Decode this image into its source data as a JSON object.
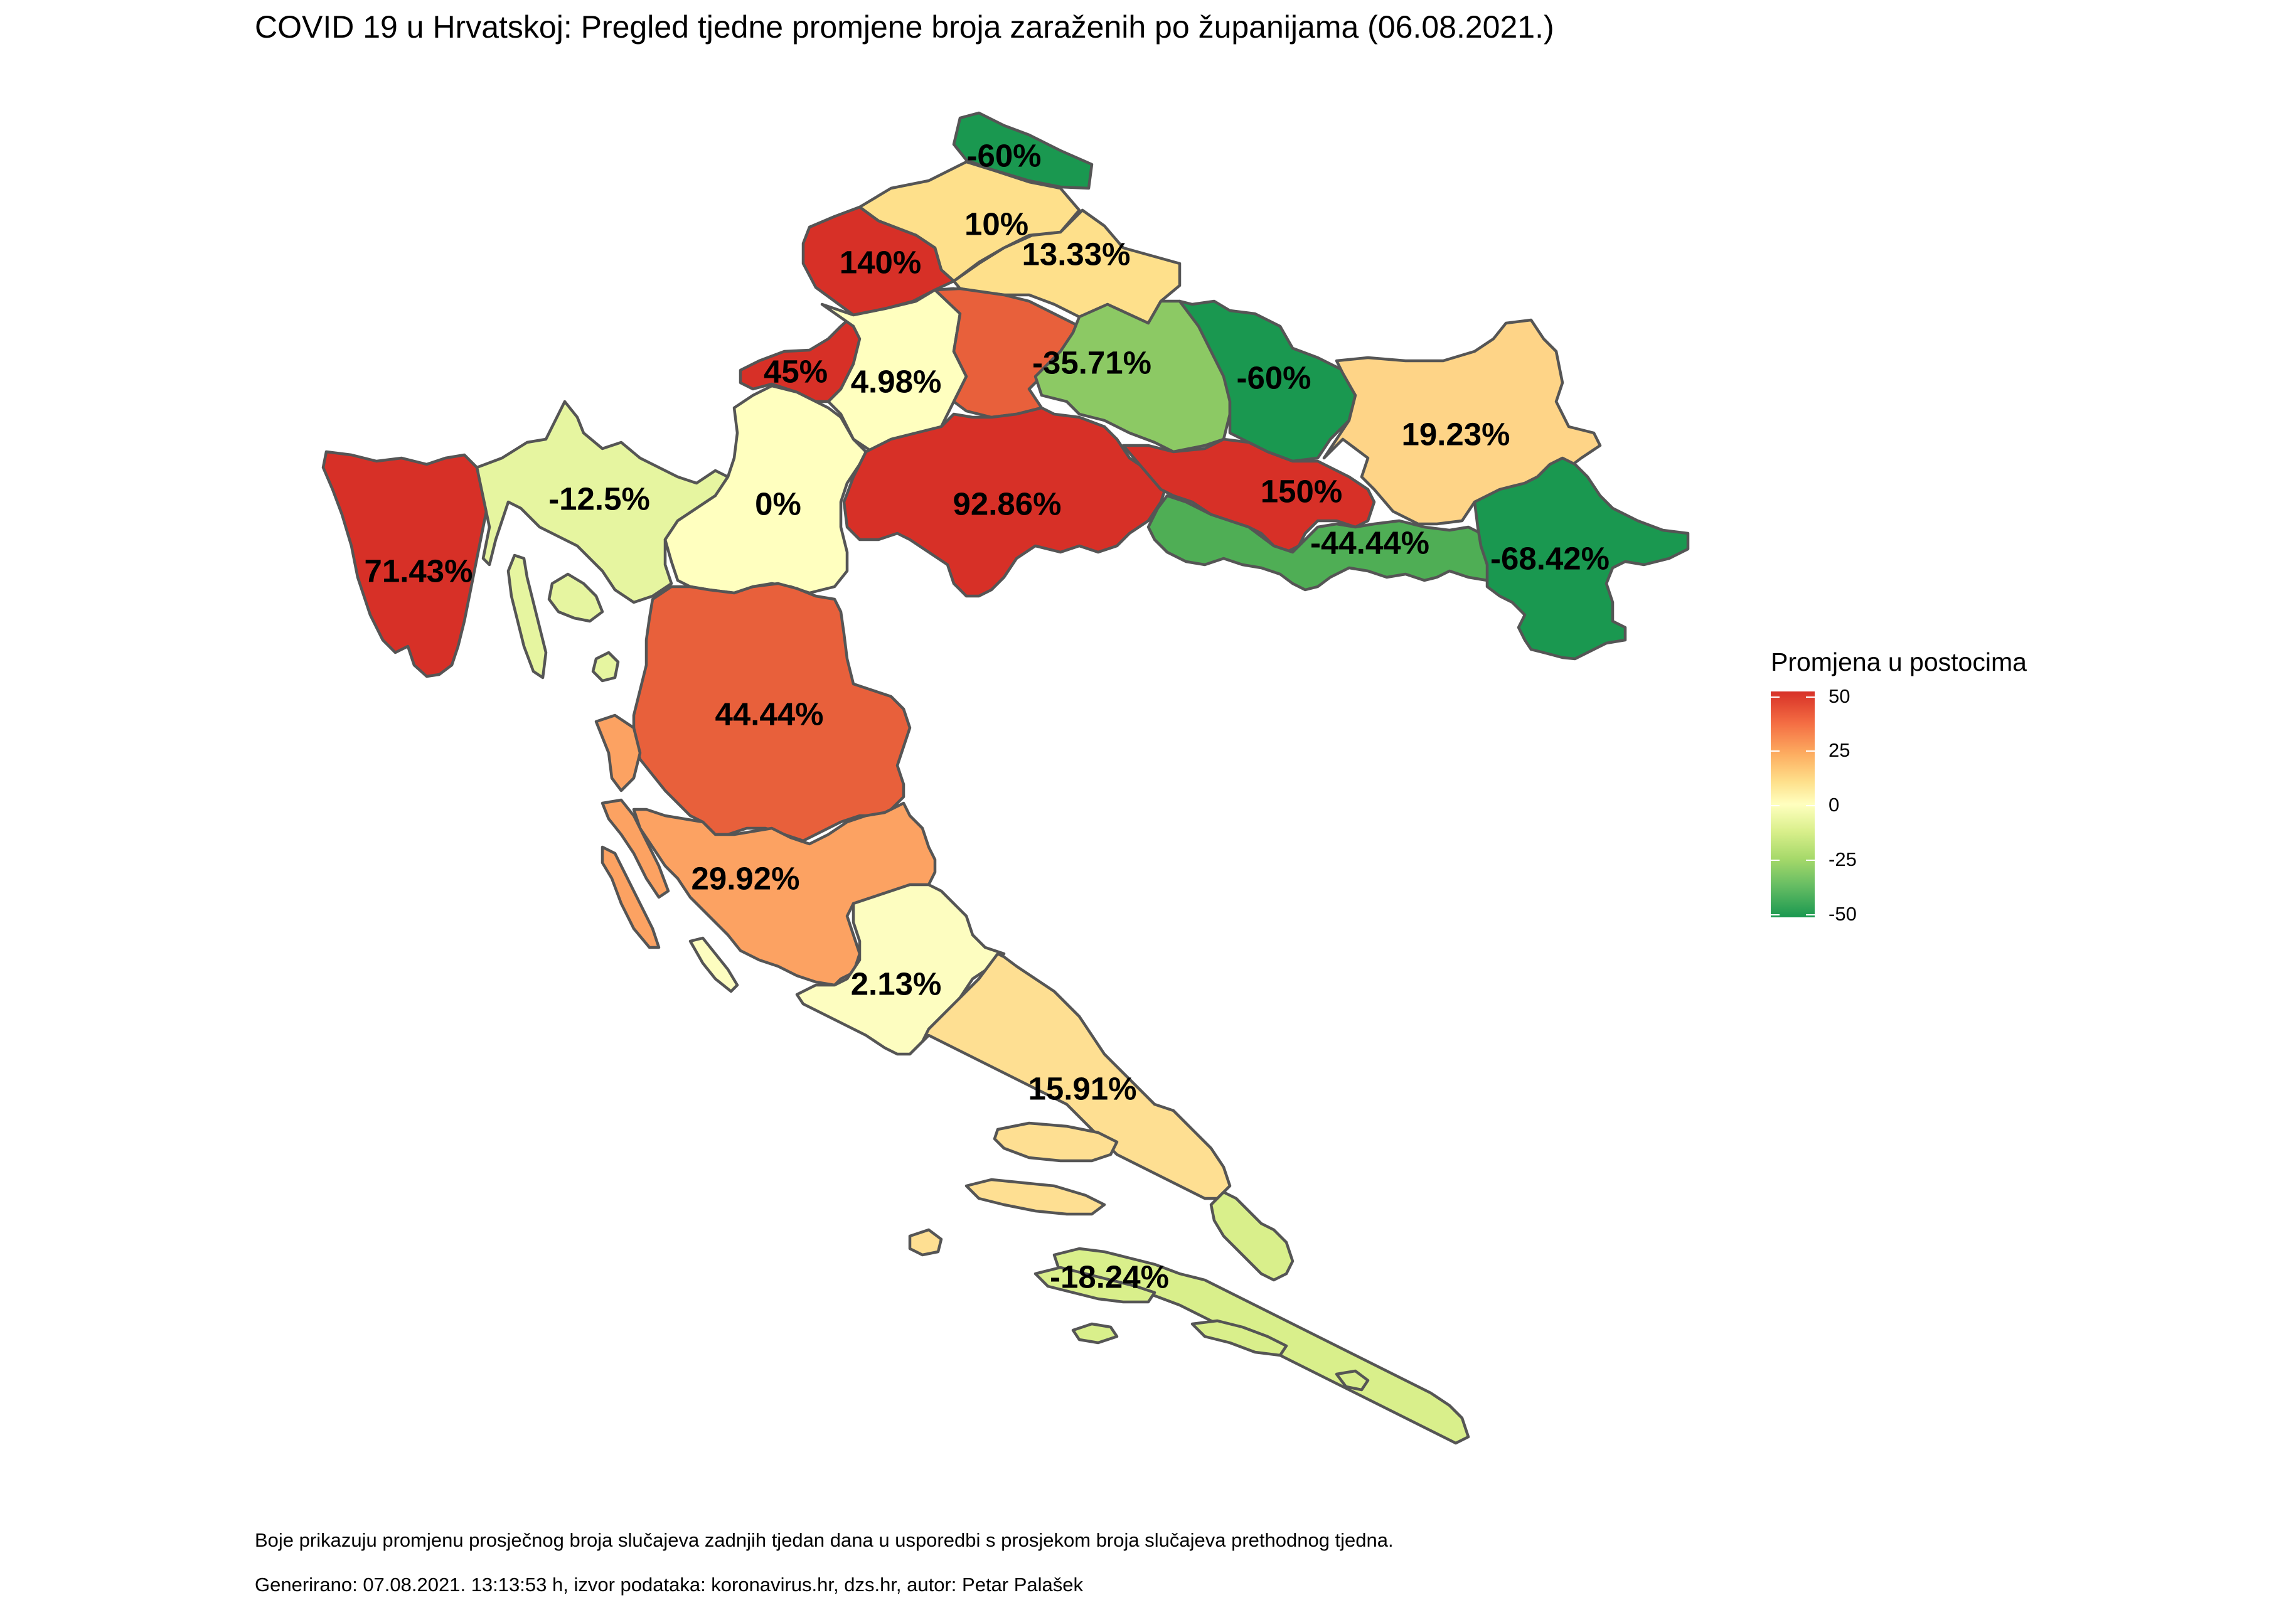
{
  "title": "COVID 19 u Hrvatskoj: Pregled tjedne promjene broja zaraženih po županijama (06.08.2021.)",
  "legend": {
    "title": "Promjena u postocima",
    "ticks": [
      "50",
      "25",
      "0",
      "-25",
      "-50"
    ],
    "tick_values": [
      50,
      25,
      0,
      -25,
      -50
    ],
    "scale_range": [
      -50,
      50
    ],
    "colors": [
      "#d73027",
      "#f46d43",
      "#fdae61",
      "#fee08b",
      "#ffffbf",
      "#d9ef8b",
      "#a6d96a",
      "#66bd63",
      "#1a9850"
    ]
  },
  "regions": [
    {
      "id": "medimurska",
      "label": "-60%",
      "value": -60,
      "color": "#1a9850"
    },
    {
      "id": "varazdinska",
      "label": "10%",
      "value": 10,
      "color": "#fee08b"
    },
    {
      "id": "koprivnicko-krizevacka",
      "label": "13.33%",
      "value": 13.33,
      "color": "#fee08b"
    },
    {
      "id": "krapinsko-zagorska",
      "label": "140%",
      "value": 140,
      "color": "#d73027"
    },
    {
      "id": "zagreb-city",
      "label": "45%",
      "value": 45,
      "color": "#d73027"
    },
    {
      "id": "zagrebacka",
      "label": "4.98%",
      "value": 4.98,
      "color": "#ffffbf"
    },
    {
      "id": "bjelovarsko-bilogorska",
      "label": "",
      "value": null,
      "color": "#e8603b"
    },
    {
      "id": "viroviticko-podravska",
      "label": "-35.71%",
      "value": -35.71,
      "color": "#8cc964"
    },
    {
      "id": "osjecko-baranjska",
      "label": "-60%",
      "value": -60,
      "color": "#1a9850"
    },
    {
      "id": "osjecko-baranjska-east",
      "label": "19.23%",
      "value": 19.23,
      "color": "#fed487"
    },
    {
      "id": "istarska",
      "label": "71.43%",
      "value": 71.43,
      "color": "#d73027"
    },
    {
      "id": "primorsko-goranska",
      "label": "-12.5%",
      "value": -12.5,
      "color": "#e6f5a0"
    },
    {
      "id": "karlovacka",
      "label": "0%",
      "value": 0,
      "color": "#ffffbf"
    },
    {
      "id": "sisacko-moslavacka",
      "label": "92.86%",
      "value": 92.86,
      "color": "#d73027"
    },
    {
      "id": "pozesko-slavonska",
      "label": "150%",
      "value": 150,
      "color": "#d73027"
    },
    {
      "id": "brodsko-posavska",
      "label": "-44.44%",
      "value": -44.44,
      "color": "#4fae55"
    },
    {
      "id": "vukovarsko-srijemska",
      "label": "-68.42%",
      "value": -68.42,
      "color": "#1a9850"
    },
    {
      "id": "licko-senjska",
      "label": "44.44%",
      "value": 44.44,
      "color": "#e8603b"
    },
    {
      "id": "zadarska",
      "label": "29.92%",
      "value": 29.92,
      "color": "#fca262"
    },
    {
      "id": "sibensko-kninska",
      "label": "2.13%",
      "value": 2.13,
      "color": "#fdfdc0"
    },
    {
      "id": "splitsko-dalmatinska",
      "label": "15.91%",
      "value": 15.91,
      "color": "#fedf92"
    },
    {
      "id": "dubrovacko-neretvanska",
      "label": "-18.24%",
      "value": -18.24,
      "color": "#d9ef8b"
    }
  ],
  "notes": {
    "description": "Boje prikazuju promjenu prosječnog broja slučajeva zadnjih tjedan dana u usporedbi s prosjekom broja slučajeva prethodnog tjedna.",
    "generated": "Generirano: 07.08.2021. 13:13:53 h, izvor podataka: koronavirus.hr, dzs.hr, autor: Petar Palašek"
  }
}
